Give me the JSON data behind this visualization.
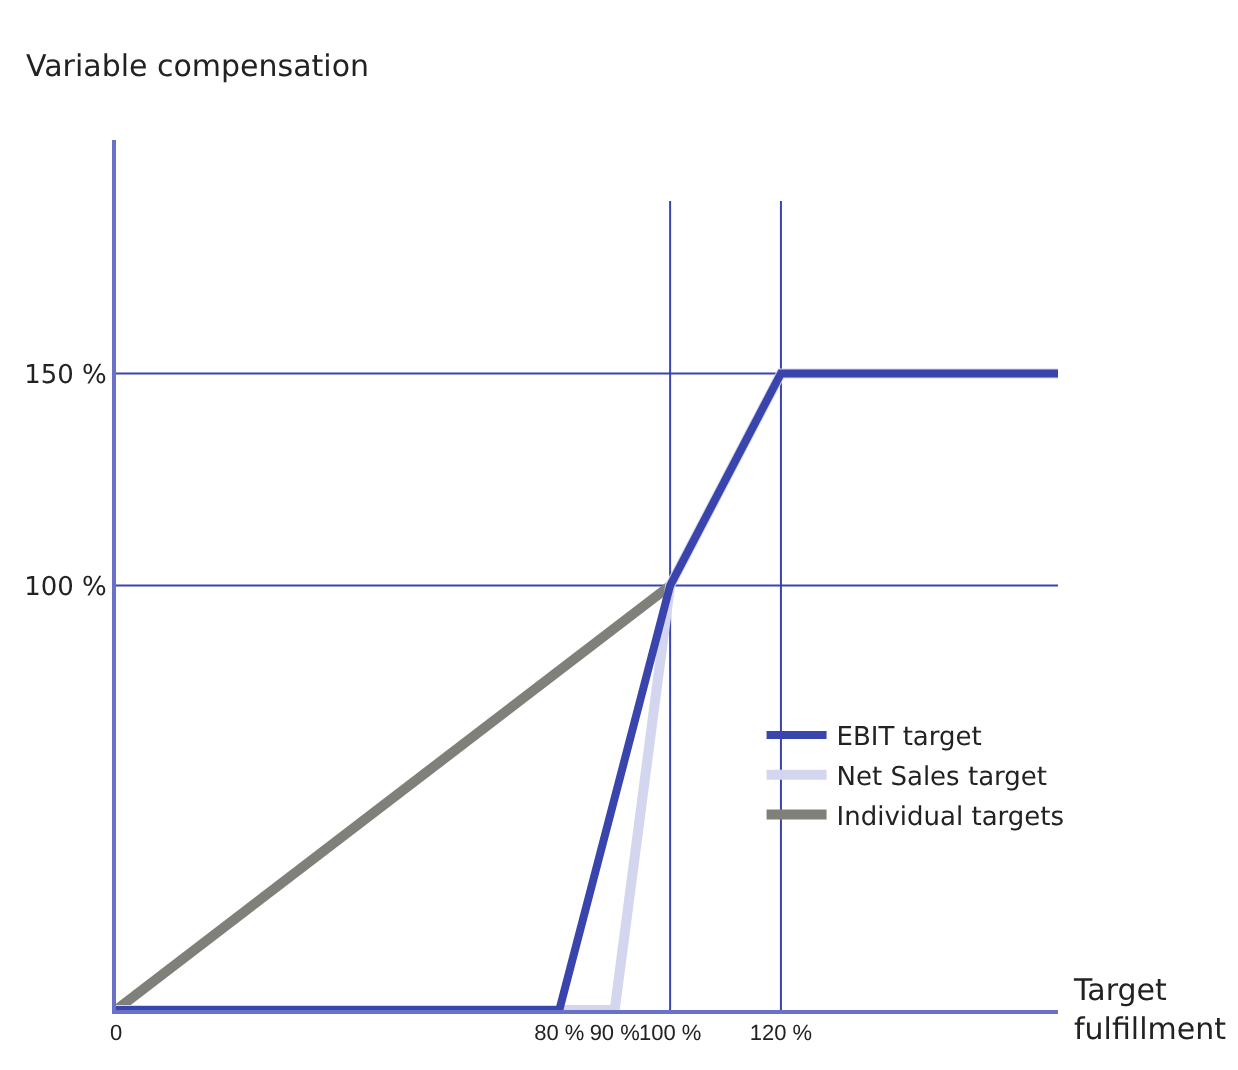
{
  "chart_data": {
    "type": "line",
    "xlabel": "Target fulfillment",
    "ylabel": "Variable compensation",
    "xlim": [
      0,
      170
    ],
    "ylim": [
      0,
      205
    ],
    "xticks": [
      0,
      {
        "value": 80,
        "label": "80 %"
      },
      {
        "value": 90,
        "label": "90 %"
      },
      {
        "value": 100,
        "label": "100 %"
      },
      {
        "value": 120,
        "label": "120 %"
      }
    ],
    "yticks": [
      {
        "value": 100,
        "label": "100 %"
      },
      {
        "value": 150,
        "label": "150 %"
      }
    ],
    "series": [
      {
        "name": "EBIT target",
        "color": "#3a44ad",
        "x": [
          0,
          80,
          100,
          120,
          170
        ],
        "values": [
          0,
          0,
          100,
          150,
          150
        ]
      },
      {
        "name": "Net Sales target",
        "color": "#d3d6ee",
        "x": [
          0,
          90,
          100,
          120,
          170
        ],
        "values": [
          0,
          0,
          100,
          150,
          150
        ]
      },
      {
        "name": "Individual targets",
        "color": "#80807a",
        "x": [
          0,
          100
        ],
        "values": [
          0,
          100
        ]
      }
    ],
    "ref_lines": [
      {
        "axis": "x",
        "value": 100,
        "color": "#3a44ad"
      },
      {
        "axis": "x",
        "value": 120,
        "color": "#3a44ad"
      },
      {
        "axis": "y",
        "value": 100,
        "color": "#3a44ad"
      },
      {
        "axis": "y",
        "value": 150,
        "color": "#3a44ad"
      }
    ],
    "grid": false,
    "legend": "right",
    "marker": "none",
    "line_style": "solid"
  }
}
